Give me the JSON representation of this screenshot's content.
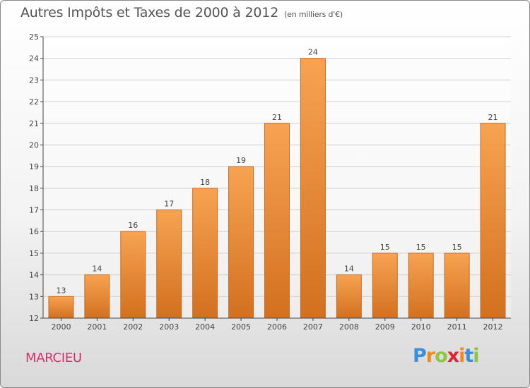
{
  "title": "Autres Impôts et Taxes de 2000 à 2012",
  "unit": "(en milliers d'€)",
  "commune": "MARCIEU",
  "logo": {
    "text": "Proxiti",
    "letters": [
      "P",
      "r",
      "o",
      "x",
      "i",
      "t",
      "i"
    ],
    "colors": [
      "#3a8fd8",
      "#f08a1c",
      "#8dc63f",
      "#e2232e",
      "#f08a1c",
      "#3a8fd8",
      "#8dc63f"
    ]
  },
  "colors": {
    "bar_top": "#f7a352",
    "bar_bottom": "#d2701f",
    "bar_stroke": "#c96a1e",
    "axis": "#444444",
    "grid": "#d0d0d0",
    "label": "#444444"
  },
  "chart_data": {
    "type": "bar",
    "categories": [
      "2000",
      "2001",
      "2002",
      "2003",
      "2004",
      "2005",
      "2006",
      "2007",
      "2008",
      "2009",
      "2010",
      "2011",
      "2012"
    ],
    "values": [
      13,
      14,
      16,
      17,
      18,
      19,
      21,
      24,
      14,
      15,
      15,
      15,
      21
    ],
    "value_labels": [
      "13",
      "14",
      "16",
      "17",
      "18",
      "19",
      "21",
      "24",
      "14",
      "15",
      "15",
      "15",
      "21"
    ],
    "yticks": [
      12,
      13,
      14,
      15,
      16,
      17,
      18,
      19,
      20,
      21,
      22,
      23,
      24,
      25
    ],
    "ylim": [
      12,
      25
    ],
    "grid": true
  }
}
